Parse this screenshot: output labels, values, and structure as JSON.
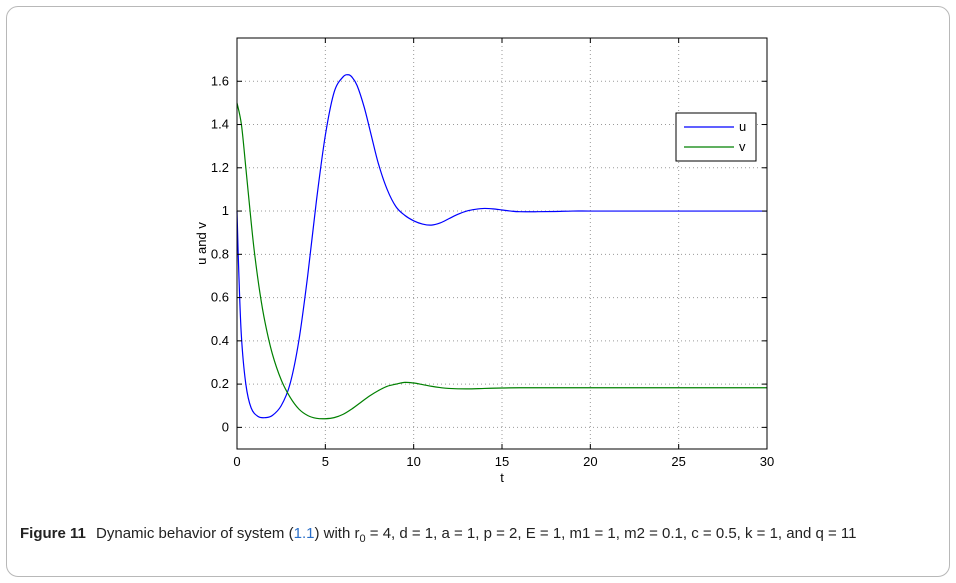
{
  "chart_data": {
    "type": "line",
    "title": "",
    "xlabel": "t",
    "ylabel": "u and v",
    "xlim": [
      0,
      30
    ],
    "ylim": [
      -0.1,
      1.8
    ],
    "xticks": [
      0,
      5,
      10,
      15,
      20,
      25,
      30
    ],
    "yticks": [
      0,
      0.2,
      0.4,
      0.6,
      0.8,
      1,
      1.2,
      1.4,
      1.6
    ],
    "ytick_labels": [
      "0",
      "0.2",
      "0.4",
      "0.6",
      "0.8",
      "1",
      "1.2",
      "1.4",
      "1.6"
    ],
    "grid": true,
    "legend_position": "top-right",
    "series": [
      {
        "name": "u",
        "color": "#0000ff",
        "x": [
          0,
          0.1,
          0.25,
          0.5,
          0.8,
          1.2,
          1.6,
          2.0,
          2.5,
          3.0,
          3.5,
          4.0,
          4.5,
          5.0,
          5.5,
          6.0,
          6.3,
          6.5,
          6.8,
          7.2,
          7.6,
          8.0,
          8.5,
          9.0,
          9.5,
          10.0,
          10.5,
          11.0,
          11.5,
          12.0,
          12.5,
          13.0,
          13.5,
          14.0,
          14.5,
          15.0,
          15.5,
          16.0,
          17.0,
          18.0,
          19.0,
          20.0,
          22.0,
          25.0,
          28.0,
          30.0
        ],
        "y": [
          1.0,
          0.72,
          0.42,
          0.2,
          0.09,
          0.05,
          0.045,
          0.055,
          0.1,
          0.2,
          0.4,
          0.7,
          1.05,
          1.35,
          1.55,
          1.62,
          1.63,
          1.62,
          1.58,
          1.48,
          1.35,
          1.22,
          1.1,
          1.02,
          0.98,
          0.955,
          0.94,
          0.935,
          0.945,
          0.965,
          0.985,
          1.0,
          1.008,
          1.012,
          1.01,
          1.005,
          1.0,
          0.997,
          0.997,
          0.998,
          1.0,
          1.0,
          1.0,
          1.0,
          1.0,
          1.0
        ]
      },
      {
        "name": "v",
        "color": "#008000",
        "x": [
          0,
          0.25,
          0.5,
          0.8,
          1.0,
          1.3,
          1.6,
          2.0,
          2.5,
          3.0,
          3.5,
          4.0,
          4.5,
          5.0,
          5.5,
          6.0,
          6.5,
          7.0,
          7.5,
          8.0,
          8.5,
          9.0,
          9.5,
          10.0,
          10.5,
          11.0,
          11.5,
          12.0,
          13.0,
          14.0,
          15.0,
          16.0,
          18.0,
          20.0,
          25.0,
          30.0
        ],
        "y": [
          1.5,
          1.4,
          1.2,
          0.95,
          0.8,
          0.62,
          0.48,
          0.34,
          0.22,
          0.14,
          0.085,
          0.055,
          0.042,
          0.04,
          0.045,
          0.06,
          0.085,
          0.115,
          0.145,
          0.17,
          0.19,
          0.2,
          0.208,
          0.205,
          0.198,
          0.19,
          0.184,
          0.18,
          0.178,
          0.18,
          0.182,
          0.183,
          0.183,
          0.183,
          0.183,
          0.183
        ]
      }
    ]
  },
  "caption": {
    "label": "Figure 11",
    "text_1": "Dynamic behavior of system (",
    "ref": "1.1",
    "text_2": ") with r",
    "rest": "= 4, d = 1, a = 1, p = 2, E = 1, m1 = 1, m2 = 0.1, c = 0.5, k = 1, and q = 11"
  }
}
